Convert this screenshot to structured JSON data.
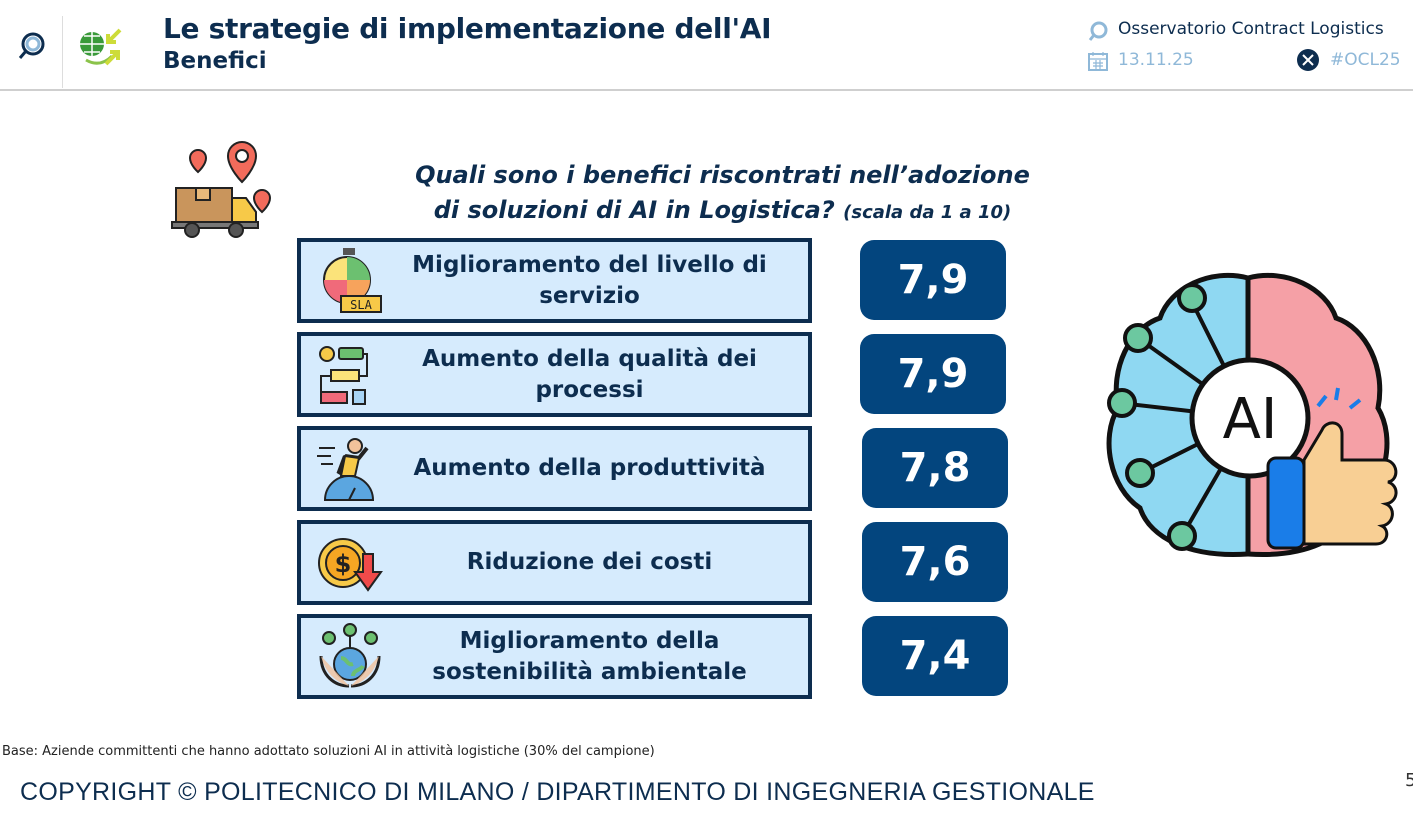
{
  "header": {
    "title": "Le strategie di implementazione dell'AI",
    "subtitle": "Benefici",
    "observatory": "Osservatorio Contract Logistics",
    "date": "13.11.25",
    "hashtag": "#OCL25",
    "icons": [
      "magnifier-icon",
      "globe-arrows-logo",
      "calendar-icon",
      "x-logo-icon"
    ]
  },
  "question": {
    "line1": "Quali sono i benefici riscontrati nell’adozione",
    "line2": "di soluzioni di AI in Logistica?",
    "scale": "(scala da 1 a 10)"
  },
  "benefits": [
    {
      "label": "Miglioramento del livello di servizio",
      "value": "7,9",
      "icon": "sla-stopwatch-icon"
    },
    {
      "label": "Aumento della qualità dei processi",
      "value": "7,9",
      "icon": "process-flow-icon"
    },
    {
      "label": "Aumento della produttività",
      "value": "7,8",
      "icon": "productivity-runner-icon"
    },
    {
      "label": "Riduzione dei costi",
      "value": "7,6",
      "icon": "cost-reduction-coin-icon"
    },
    {
      "label": "Miglioramento della sostenibilità ambientale",
      "value": "7,4",
      "icon": "sustainability-globe-hands-icon"
    }
  ],
  "illustrations": {
    "brain_text": "AI",
    "truck": "delivery-truck-icon"
  },
  "colors": {
    "navy": "#0d2d4f",
    "value_bg": "#03457e",
    "box_bg": "#d6ebfd",
    "light_blue": "#8fb8d8"
  },
  "footer": {
    "base": "Base: Aziende committenti che hanno adottato soluzioni AI in attività logistiche (30% del campione)",
    "copyright": "COPYRIGHT © POLITECNICO DI MILANO / DIPARTIMENTO DI INGEGNERIA GESTIONALE",
    "page": "5"
  }
}
